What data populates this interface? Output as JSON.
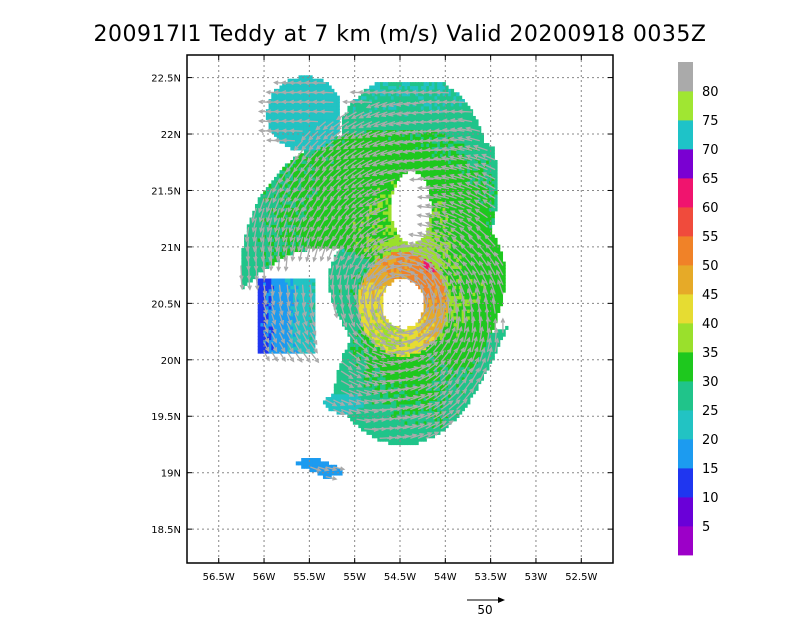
{
  "chart_data": {
    "type": "heatmap",
    "title": "200917I1 Teddy at 7 km (m/s) Valid 20200918 0035Z",
    "xlim": [
      -56.85,
      -52.15
    ],
    "ylim": [
      18.2,
      22.7
    ],
    "x_ticks": [
      -56.5,
      -56,
      -55.5,
      -55,
      -54.5,
      -54,
      -53.5,
      -53,
      -52.5
    ],
    "x_tick_labels": [
      "56.5W",
      "56W",
      "55.5W",
      "55W",
      "54.5W",
      "54W",
      "53.5W",
      "53W",
      "52.5W"
    ],
    "y_ticks": [
      18.5,
      19,
      19.5,
      20,
      20.5,
      21,
      21.5,
      22,
      22.5
    ],
    "y_tick_labels": [
      "18.5N",
      "19N",
      "19.5N",
      "20N",
      "20.5N",
      "21N",
      "21.5N",
      "22N",
      "22.5N"
    ],
    "grid": true,
    "center": {
      "lon": -54.47,
      "lat": 20.5
    },
    "eye_radius_deg": 0.22,
    "colorbar": {
      "labels": [
        "5",
        "10",
        "15",
        "20",
        "25",
        "30",
        "35",
        "40",
        "45",
        "50",
        "55",
        "60",
        "65",
        "70",
        "75",
        "80"
      ],
      "colors": [
        "#9c00c8",
        "#6a00d8",
        "#1f36f0",
        "#1c9bf0",
        "#22c3c3",
        "#20c48a",
        "#1ec81e",
        "#9ae02c",
        "#e6dc32",
        "#e6aa28",
        "#f08228",
        "#f04b3c",
        "#f0146e",
        "#7a00d2",
        "#1ec3c8",
        "#a0e632",
        "#aaaaaa"
      ]
    },
    "reference_vector": {
      "label": "50",
      "speed": 50
    },
    "wind_regions": [
      {
        "name": "eyewall-max",
        "lon": -54.15,
        "lat": 20.85,
        "speed": 60
      },
      {
        "name": "eyewall-ring",
        "lon": -54.45,
        "lat": 20.5,
        "speed": 48
      },
      {
        "name": "north-band",
        "lon": -54.2,
        "lat": 21.5,
        "speed": 38
      },
      {
        "name": "east-band",
        "lon": -53.5,
        "lat": 20.5,
        "speed": 37
      },
      {
        "name": "south-band",
        "lon": -54.3,
        "lat": 19.8,
        "speed": 34
      },
      {
        "name": "west-band",
        "lon": -55.05,
        "lat": 20.4,
        "speed": 30
      },
      {
        "name": "west-strip",
        "lon": -55.7,
        "lat": 20.45,
        "speed": 14
      },
      {
        "name": "north-outer",
        "lon": -54.6,
        "lat": 22.0,
        "speed": 25
      },
      {
        "name": "northwest-patch",
        "lon": -55.6,
        "lat": 22.2,
        "speed": 22
      },
      {
        "name": "southwest-patch",
        "lon": -55.1,
        "lat": 19.6,
        "speed": 21
      },
      {
        "name": "south-fragment",
        "lon": -55.5,
        "lat": 19.0,
        "speed": 17
      }
    ]
  }
}
